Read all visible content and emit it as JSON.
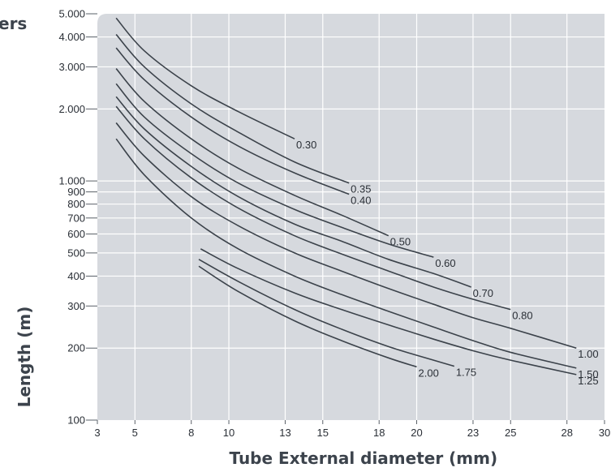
{
  "header_fragment": "ers",
  "chart_data": {
    "type": "line",
    "xlabel": "Tube External diameter (mm)",
    "ylabel": "Length (m)",
    "x_scale": "linear",
    "y_scale": "log",
    "xlim": [
      3,
      30
    ],
    "ylim": [
      100,
      5000
    ],
    "x_ticks": [
      3,
      5,
      8,
      10,
      13,
      15,
      18,
      20,
      23,
      25,
      28,
      30
    ],
    "y_ticks": [
      {
        "value": 100,
        "label": "100"
      },
      {
        "value": 200,
        "label": "200"
      },
      {
        "value": 300,
        "label": "300"
      },
      {
        "value": 400,
        "label": "400"
      },
      {
        "value": 500,
        "label": "500"
      },
      {
        "value": 600,
        "label": "600"
      },
      {
        "value": 700,
        "label": "700"
      },
      {
        "value": 800,
        "label": "800"
      },
      {
        "value": 900,
        "label": "900"
      },
      {
        "value": 1000,
        "label": "1.000"
      },
      {
        "value": 2000,
        "label": "2.000"
      },
      {
        "value": 3000,
        "label": "3.000"
      },
      {
        "value": 4000,
        "label": "4.000"
      },
      {
        "value": 5000,
        "label": "5.000"
      }
    ],
    "grid": true,
    "series": [
      {
        "name": "0.30",
        "points": [
          [
            4.0,
            4800
          ],
          [
            5.5,
            3500
          ],
          [
            8,
            2500
          ],
          [
            10.5,
            1950
          ],
          [
            13.5,
            1500
          ]
        ]
      },
      {
        "name": "0.35",
        "points": [
          [
            4.0,
            4100
          ],
          [
            5.5,
            3000
          ],
          [
            8,
            2100
          ],
          [
            10.5,
            1600
          ],
          [
            13.5,
            1200
          ],
          [
            16.4,
            980
          ]
        ]
      },
      {
        "name": "0.40",
        "points": [
          [
            4.0,
            3600
          ],
          [
            5.5,
            2650
          ],
          [
            8,
            1850
          ],
          [
            10.5,
            1400
          ],
          [
            13.5,
            1080
          ],
          [
            16.4,
            880
          ]
        ]
      },
      {
        "name": "0.50",
        "points": [
          [
            4.0,
            2950
          ],
          [
            5.5,
            2150
          ],
          [
            8,
            1500
          ],
          [
            10.5,
            1130
          ],
          [
            13.5,
            870
          ],
          [
            16.0,
            720
          ],
          [
            18.5,
            590
          ]
        ]
      },
      {
        "name": "0.60",
        "points": [
          [
            4.0,
            2550
          ],
          [
            5.5,
            1850
          ],
          [
            8,
            1300
          ],
          [
            10.5,
            980
          ],
          [
            13.5,
            760
          ],
          [
            16.0,
            640
          ],
          [
            18.5,
            545
          ],
          [
            20.9,
            480
          ]
        ]
      },
      {
        "name": "0.70",
        "points": [
          [
            4.0,
            2250
          ],
          [
            5.5,
            1650
          ],
          [
            8,
            1150
          ],
          [
            10.5,
            860
          ],
          [
            13.5,
            660
          ],
          [
            16.0,
            560
          ],
          [
            18.5,
            470
          ],
          [
            20.9,
            410
          ],
          [
            22.9,
            360
          ]
        ]
      },
      {
        "name": "0.80",
        "points": [
          [
            4.0,
            2050
          ],
          [
            5.5,
            1500
          ],
          [
            8,
            1030
          ],
          [
            10.5,
            770
          ],
          [
            13.5,
            590
          ],
          [
            16.0,
            495
          ],
          [
            18.5,
            420
          ],
          [
            20.9,
            360
          ],
          [
            23.0,
            320
          ],
          [
            25.0,
            290
          ]
        ]
      },
      {
        "name": "1.00",
        "points": [
          [
            4.0,
            1750
          ],
          [
            5.5,
            1270
          ],
          [
            8,
            860
          ],
          [
            10.5,
            650
          ],
          [
            13.5,
            500
          ],
          [
            16.0,
            420
          ],
          [
            18.5,
            355
          ],
          [
            20.9,
            305
          ],
          [
            23.0,
            268
          ],
          [
            25.0,
            242
          ],
          [
            28.5,
            200
          ]
        ]
      },
      {
        "name": "1.25",
        "points": [
          [
            8.5,
            520
          ],
          [
            10.5,
            430
          ],
          [
            13.5,
            340
          ],
          [
            16.0,
            290
          ],
          [
            18.5,
            250
          ],
          [
            20.9,
            218
          ],
          [
            23.0,
            195
          ],
          [
            25.0,
            178
          ],
          [
            28.5,
            155
          ]
        ]
      },
      {
        "name": "1.50",
        "points": [
          [
            4.0,
            1500
          ],
          [
            5.5,
            1060
          ],
          [
            8,
            700
          ],
          [
            10.5,
            520
          ],
          [
            13.5,
            400
          ],
          [
            16.0,
            335
          ],
          [
            18.5,
            285
          ],
          [
            20.9,
            245
          ],
          [
            23.0,
            215
          ],
          [
            25.0,
            192
          ],
          [
            28.5,
            165
          ]
        ]
      },
      {
        "name": "1.75",
        "points": [
          [
            8.4,
            470
          ],
          [
            10.5,
            380
          ],
          [
            13.5,
            290
          ],
          [
            16.0,
            240
          ],
          [
            18.5,
            203
          ],
          [
            20.9,
            178
          ],
          [
            22.0,
            168
          ]
        ]
      },
      {
        "name": "2.00",
        "points": [
          [
            8.4,
            440
          ],
          [
            10.5,
            345
          ],
          [
            13.5,
            260
          ],
          [
            16.0,
            215
          ],
          [
            18.5,
            182
          ],
          [
            20.0,
            167
          ]
        ]
      }
    ]
  }
}
